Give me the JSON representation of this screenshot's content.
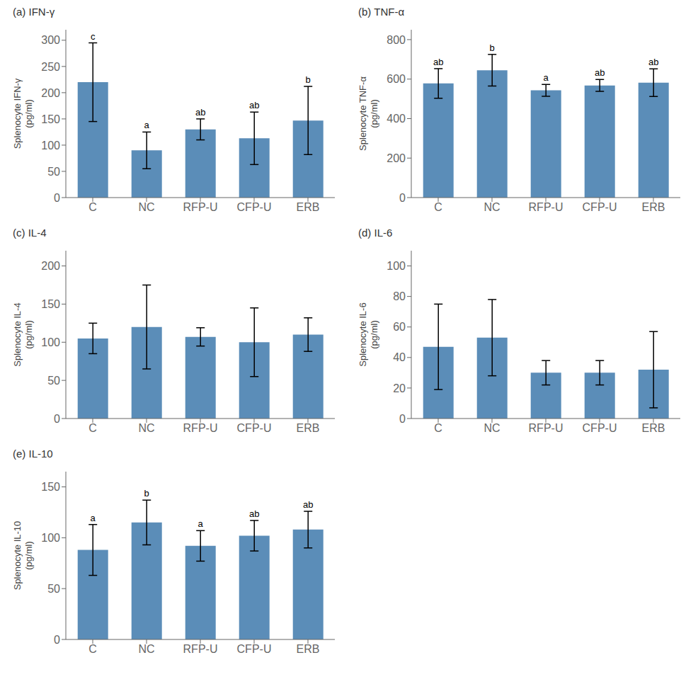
{
  "chart_data": [
    {
      "type": "bar",
      "title": "(a) IFN-γ",
      "y_label": "Splenocyte IFN-γ\n(pg/ml)",
      "categories": [
        "C",
        "NC",
        "RFP-U",
        "CFP-U",
        "ERB"
      ],
      "values": [
        220,
        90,
        130,
        113,
        147
      ],
      "errors": [
        75,
        35,
        20,
        50,
        65
      ],
      "annotations": [
        "c",
        "a",
        "ab",
        "ab",
        "b"
      ],
      "color": "#5B8DB8",
      "ylim": [
        0,
        320
      ],
      "yticks": [
        0,
        50,
        100,
        150,
        200,
        250,
        300
      ],
      "grid": false
    },
    {
      "type": "bar",
      "title": "(b) TNF-α",
      "y_label": "Splenocyte TNF-α\n(pg/ml)",
      "categories": [
        "C",
        "NC",
        "RFP-U",
        "CFP-U",
        "ERB"
      ],
      "values": [
        578,
        645,
        543,
        568,
        582
      ],
      "errors": [
        75,
        80,
        30,
        30,
        70
      ],
      "annotations": [
        "ab",
        "b",
        "a",
        "ab",
        "ab"
      ],
      "color": "#5B8DB8",
      "ylim": [
        0,
        850
      ],
      "yticks": [
        0,
        200,
        400,
        600,
        800
      ],
      "grid": false
    },
    {
      "type": "bar",
      "title": "(c) IL-4",
      "y_label": "Splenocyte IL-4\n(pg/ml)",
      "categories": [
        "C",
        "NC",
        "RFP-U",
        "CFP-U",
        "ERB"
      ],
      "values": [
        105,
        120,
        107,
        100,
        110
      ],
      "errors": [
        20,
        55,
        12,
        45,
        22
      ],
      "color": "#5B8DB8",
      "ylim": [
        0,
        220
      ],
      "yticks": [
        0,
        50,
        100,
        150,
        200
      ],
      "grid": false
    },
    {
      "type": "bar",
      "title": "(d) IL-6",
      "y_label": "Splenocyte IL-6\n(pg/ml)",
      "categories": [
        "C",
        "NC",
        "RFP-U",
        "CFP-U",
        "ERB"
      ],
      "values": [
        47,
        53,
        30,
        30,
        32
      ],
      "errors": [
        28,
        25,
        8,
        8,
        25
      ],
      "color": "#5B8DB8",
      "ylim": [
        0,
        110
      ],
      "yticks": [
        0,
        20,
        40,
        60,
        80,
        100
      ],
      "grid": false
    },
    {
      "type": "bar",
      "title": "(e) IL-10",
      "y_label": "Splenocyte IL-10\n(pg/ml)",
      "categories": [
        "C",
        "NC",
        "RFP-U",
        "CFP-U",
        "ERB"
      ],
      "values": [
        88,
        115,
        92,
        102,
        108
      ],
      "errors": [
        25,
        22,
        15,
        15,
        18
      ],
      "annotations": [
        "a",
        "b",
        "a",
        "ab",
        "ab"
      ],
      "color": "#5B8DB8",
      "ylim": [
        0,
        165
      ],
      "yticks": [
        0,
        50,
        100,
        150
      ],
      "grid": false
    }
  ]
}
